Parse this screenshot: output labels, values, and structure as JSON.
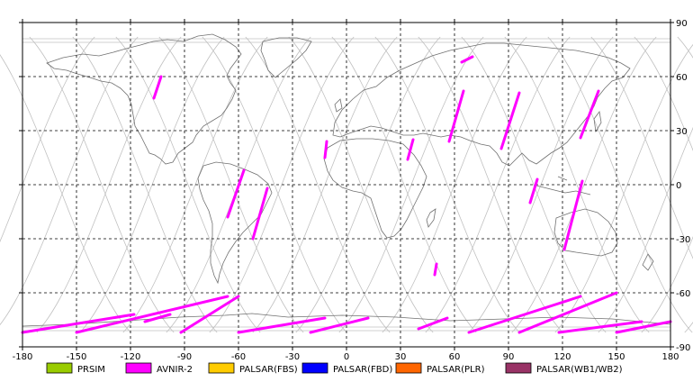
{
  "map": {
    "lon_ticks": [
      {
        "value": -180,
        "label": "-180"
      },
      {
        "value": -150,
        "label": "-150"
      },
      {
        "value": -120,
        "label": "-120"
      },
      {
        "value": -90,
        "label": "-90"
      },
      {
        "value": -60,
        "label": "-60"
      },
      {
        "value": -30,
        "label": "-30"
      },
      {
        "value": 0,
        "label": "0"
      },
      {
        "value": 30,
        "label": "30"
      },
      {
        "value": 60,
        "label": "60"
      },
      {
        "value": 90,
        "label": "90"
      },
      {
        "value": 120,
        "label": "120"
      },
      {
        "value": 150,
        "label": "150"
      },
      {
        "value": 180,
        "label": "180"
      }
    ],
    "lat_ticks": [
      {
        "value": 90,
        "label": "90"
      },
      {
        "value": 60,
        "label": "60"
      },
      {
        "value": 30,
        "label": "30"
      },
      {
        "value": 0,
        "label": "0"
      },
      {
        "value": -30,
        "label": "-30"
      },
      {
        "value": -60,
        "label": "-60"
      },
      {
        "value": -90,
        "label": "-90"
      }
    ],
    "lon_range": [
      -180,
      180
    ],
    "lat_range": [
      -90,
      90
    ],
    "grid": "dashed",
    "coastline_color": "#707070",
    "orbit_track_color": "#c0c0c0",
    "colors": {
      "PRSIM": "#99cc00",
      "AVNIR-2": "#ff00ff",
      "PALSAR(FBS)": "#ffcc00",
      "PALSAR(FBD)": "#0000ff",
      "PALSAR(PLR)": "#ff6600",
      "PALSAR(WB1/WB2)": "#993366"
    },
    "avnir2_segments": [
      [
        [
          -103,
          60
        ],
        [
          -107,
          48
        ]
      ],
      [
        [
          -57,
          8
        ],
        [
          -66,
          -18
        ]
      ],
      [
        [
          -44,
          -2
        ],
        [
          -52,
          -30
        ]
      ],
      [
        [
          -11,
          24
        ],
        [
          -12,
          15
        ]
      ],
      [
        [
          37,
          25
        ],
        [
          34,
          14
        ]
      ],
      [
        [
          65,
          52
        ],
        [
          57,
          24
        ]
      ],
      [
        [
          96,
          51
        ],
        [
          86,
          20
        ]
      ],
      [
        [
          140,
          52
        ],
        [
          130,
          26
        ]
      ],
      [
        [
          106,
          3
        ],
        [
          102,
          -10
        ]
      ],
      [
        [
          131,
          2
        ],
        [
          121,
          -36
        ]
      ],
      [
        [
          50,
          -44
        ],
        [
          49,
          -50
        ]
      ],
      [
        [
          70,
          71
        ],
        [
          64,
          68
        ]
      ]
    ],
    "avnir2_antarctic": [
      [
        [
          -180,
          -82
        ],
        [
          -118,
          -72
        ]
      ],
      [
        [
          -112,
          -76
        ],
        [
          -98,
          -72
        ]
      ],
      [
        [
          -150,
          -82
        ],
        [
          -66,
          -62
        ]
      ],
      [
        [
          -92,
          -82
        ],
        [
          -60,
          -62
        ]
      ],
      [
        [
          -60,
          -82
        ],
        [
          -12,
          -74
        ]
      ],
      [
        [
          -20,
          -82
        ],
        [
          12,
          -74
        ]
      ],
      [
        [
          40,
          -80
        ],
        [
          56,
          -74
        ]
      ],
      [
        [
          68,
          -82
        ],
        [
          130,
          -62
        ]
      ],
      [
        [
          96,
          -82
        ],
        [
          150,
          -60
        ]
      ],
      [
        [
          118,
          -82
        ],
        [
          164,
          -76
        ]
      ],
      [
        [
          150,
          -82
        ],
        [
          180,
          -76
        ]
      ]
    ]
  },
  "legend": [
    {
      "key": "PRSIM",
      "label": "PRSIM"
    },
    {
      "key": "AVNIR-2",
      "label": "AVNIR-2"
    },
    {
      "key": "PALSAR(FBS)",
      "label": "PALSAR(FBS)"
    },
    {
      "key": "PALSAR(FBD)",
      "label": "PALSAR(FBD)"
    },
    {
      "key": "PALSAR(PLR)",
      "label": "PALSAR(PLR)"
    },
    {
      "key": "PALSAR(WB1/WB2)",
      "label": "PALSAR(WB1/WB2)"
    }
  ]
}
